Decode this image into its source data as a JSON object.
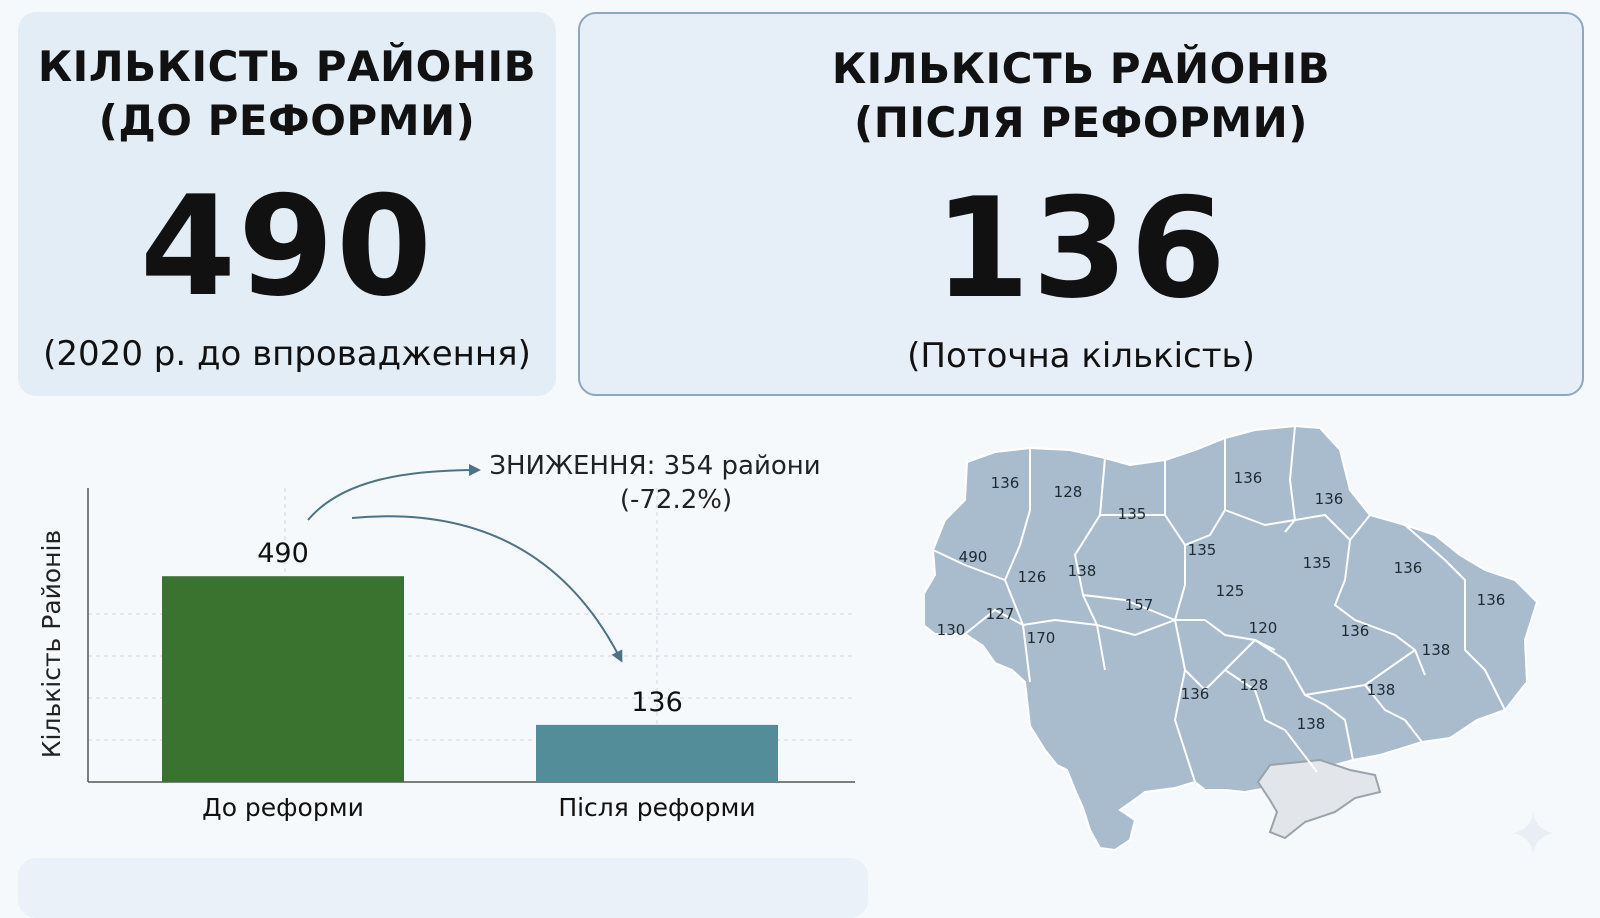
{
  "cards": [
    {
      "title": "КІЛЬКІСТЬ РАЙОНІВ\n(ДО РЕФОРМИ)",
      "value": "490",
      "subtitle": "(2020 р. до впровадження)"
    },
    {
      "title": "КІЛЬКІСТЬ РАЙОНІВ\n(ПІСЛЯ РЕФОРМИ)",
      "value": "136",
      "subtitle": "(Поточна кількість)"
    }
  ],
  "chart_data": {
    "type": "bar",
    "categories": [
      "До реформи",
      "Після реформи"
    ],
    "values": [
      490,
      136
    ],
    "data_labels": [
      "490",
      "136"
    ],
    "title": "",
    "xlabel": "",
    "ylabel": "Кількість Районів",
    "ylim": [
      0,
      700
    ],
    "grid": true,
    "colors": [
      "#3a7230",
      "#528d99"
    ],
    "annotation": {
      "line1": "ЗНИЖЕННЯ: 354 райони",
      "line2": "(-72.2%)"
    }
  },
  "map": {
    "fill": "#a9bccd",
    "labels": [
      "136",
      "128",
      "135",
      "135",
      "136",
      "136",
      "490",
      "126",
      "138",
      "157",
      "125",
      "135",
      "136",
      "136",
      "127",
      "130",
      "170",
      "120",
      "136",
      "138",
      "136",
      "128",
      "138",
      "138"
    ]
  }
}
